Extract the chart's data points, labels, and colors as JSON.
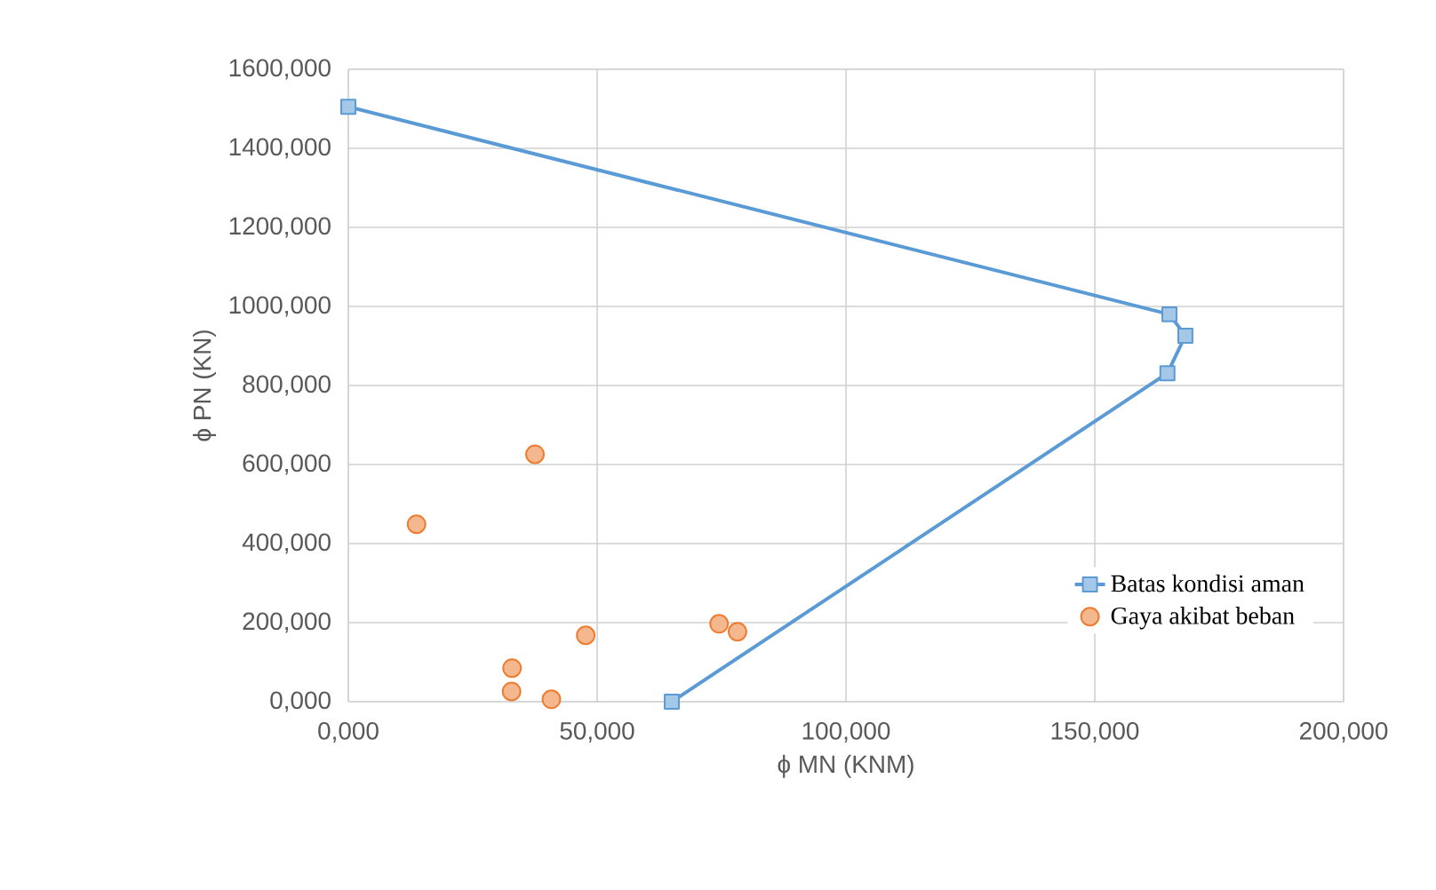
{
  "chart_data": {
    "type": "line",
    "xlabel": "ϕ MN (KNM)",
    "ylabel": "ϕ PN (KN)",
    "xlim": [
      0,
      200
    ],
    "ylim": [
      0,
      1600
    ],
    "xticks": [
      {
        "value": 0,
        "label": "0,000"
      },
      {
        "value": 50,
        "label": "50,000"
      },
      {
        "value": 100,
        "label": "100,000"
      },
      {
        "value": 150,
        "label": "150,000"
      },
      {
        "value": 200,
        "label": "200,000"
      }
    ],
    "yticks": [
      {
        "value": 0,
        "label": "0,000"
      },
      {
        "value": 200,
        "label": "200,000"
      },
      {
        "value": 400,
        "label": "400,000"
      },
      {
        "value": 600,
        "label": "600,000"
      },
      {
        "value": 800,
        "label": "800,000"
      },
      {
        "value": 1000,
        "label": "1000,000"
      },
      {
        "value": 1200,
        "label": "1200,000"
      },
      {
        "value": 1400,
        "label": "1400,000"
      },
      {
        "value": 1600,
        "label": "1600,000"
      }
    ],
    "grid": true,
    "legend": "right",
    "series": [
      {
        "name": "Batas kondisi aman",
        "marker": "square",
        "color": "#5b9bd5",
        "x": [
          0,
          165,
          168.2,
          164.6,
          65
        ],
        "values": [
          1505,
          980,
          926,
          831,
          0
        ]
      },
      {
        "name": "Gaya akibat beban",
        "type": "scatter",
        "marker": "circle",
        "color": "#ed7d31",
        "x": [
          37.5,
          13.7,
          47.7,
          74.5,
          78.2,
          32.9,
          32.8,
          40.8
        ],
        "values": [
          626,
          449,
          168,
          197,
          177,
          85,
          26,
          6
        ]
      }
    ]
  }
}
